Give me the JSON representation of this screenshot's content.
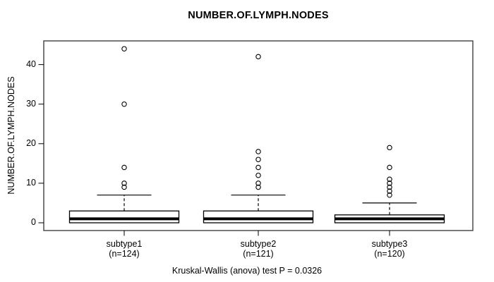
{
  "chart_data": {
    "type": "boxplot",
    "title": "NUMBER.OF.LYMPH.NODES",
    "ylabel": "NUMBER.OF.LYMPH.NODES",
    "xlabel": "",
    "y_ticks": [
      0,
      10,
      20,
      30,
      40
    ],
    "ylim": [
      -2,
      46
    ],
    "grid": false,
    "legend": "none",
    "annotation": "Kruskal-Wallis (anova) test P = 0.0326",
    "groups": [
      {
        "label": "subtype1",
        "sublabel": "(n=124)",
        "n": 124,
        "whisker_low": 0,
        "q1": 0,
        "median": 1,
        "q3": 3,
        "whisker_high": 7,
        "outliers": [
          9,
          10,
          14,
          30,
          44
        ]
      },
      {
        "label": "subtype2",
        "sublabel": "(n=121)",
        "n": 121,
        "whisker_low": 0,
        "q1": 0,
        "median": 1,
        "q3": 3,
        "whisker_high": 7,
        "outliers": [
          9,
          10,
          12,
          14,
          16,
          18,
          42
        ]
      },
      {
        "label": "subtype3",
        "sublabel": "(n=120)",
        "n": 120,
        "whisker_low": 0,
        "q1": 0,
        "median": 1,
        "q3": 2,
        "whisker_high": 5,
        "outliers": [
          7,
          8,
          9,
          10,
          11,
          14,
          19
        ]
      }
    ]
  },
  "colors": {
    "stroke": "#000000",
    "frame": "#4d4d4d",
    "box_fill": "#ffffff",
    "background": "#ffffff"
  }
}
